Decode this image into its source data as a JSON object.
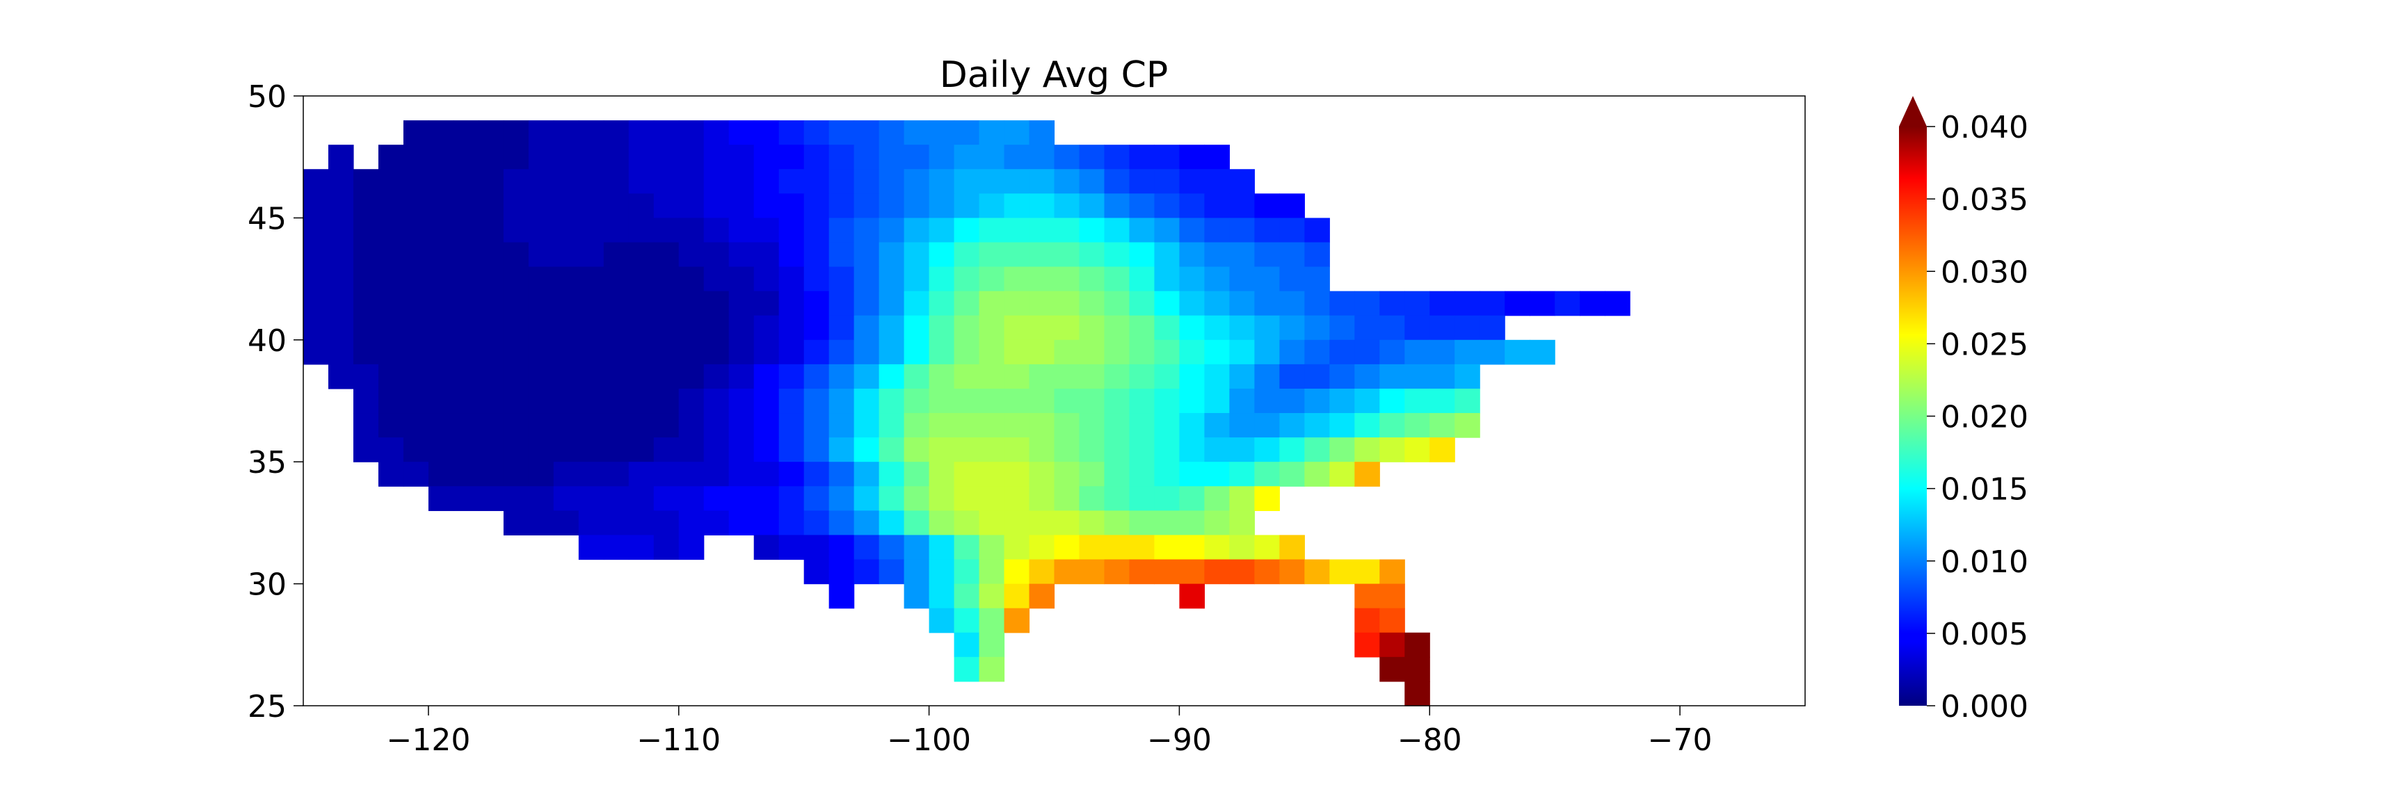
{
  "chart_data": {
    "type": "heatmap",
    "title": "Daily Avg CP",
    "xlabel": "",
    "ylabel": "",
    "xlim": [
      -125,
      -65
    ],
    "ylim": [
      25,
      50
    ],
    "grid": false,
    "x_ticks": [
      -120,
      -110,
      -100,
      -90,
      -80,
      -70
    ],
    "x_tick_labels": [
      "−120",
      "−110",
      "−100",
      "−90",
      "−80",
      "−70"
    ],
    "y_ticks": [
      25,
      30,
      35,
      40,
      45,
      50
    ],
    "y_tick_labels": [
      "25",
      "30",
      "35",
      "40",
      "45",
      "50"
    ],
    "colormap": "jet",
    "colorbar": {
      "min": 0.0,
      "max": 0.04,
      "extend": "max",
      "extend_color": "#800000",
      "ticks": [
        0.0,
        0.005,
        0.01,
        0.015,
        0.02,
        0.025,
        0.03,
        0.035,
        0.04
      ],
      "tick_labels": [
        "0.000",
        "0.005",
        "0.010",
        "0.015",
        "0.020",
        "0.025",
        "0.030",
        "0.035",
        "0.040"
      ],
      "placement": "right"
    },
    "cell_size_deg": 1.0,
    "rows": [
      {
        "lat": 48.5,
        "lon_start": -120.5,
        "values": [
          0.001,
          0.001,
          0.001,
          0.001,
          0.001,
          0.002,
          0.002,
          0.002,
          0.002,
          0.003,
          0.003,
          0.003,
          0.004,
          0.005,
          0.005,
          0.006,
          0.007,
          0.008,
          0.008,
          0.009,
          0.01,
          0.01,
          0.01,
          0.011,
          0.011,
          0.01
        ]
      },
      {
        "lat": 47.5,
        "lon_start": -123.5,
        "values": [
          0.002,
          null,
          0.001,
          0.001,
          0.001,
          0.001,
          0.001,
          0.001,
          0.002,
          0.002,
          0.002,
          0.002,
          0.003,
          0.003,
          0.003,
          0.004,
          0.004,
          0.005,
          0.005,
          0.006,
          0.007,
          0.008,
          0.009,
          0.009,
          0.01,
          0.011,
          0.011,
          0.01,
          0.01,
          0.009,
          0.008,
          0.007,
          0.006,
          0.006,
          0.005,
          0.005
        ]
      },
      {
        "lat": 46.5,
        "lon_start": -124.5,
        "values": [
          0.002,
          0.002,
          0.001,
          0.001,
          0.001,
          0.001,
          0.001,
          0.001,
          0.002,
          0.002,
          0.002,
          0.002,
          0.002,
          0.003,
          0.003,
          0.003,
          0.004,
          0.004,
          0.005,
          0.006,
          0.006,
          0.007,
          0.008,
          0.009,
          0.01,
          0.011,
          0.012,
          0.012,
          0.012,
          0.012,
          0.011,
          0.01,
          0.008,
          0.007,
          0.007,
          0.006,
          0.006,
          0.006
        ]
      },
      {
        "lat": 45.5,
        "lon_start": -124.5,
        "values": [
          0.002,
          0.002,
          0.001,
          0.001,
          0.001,
          0.001,
          0.001,
          0.001,
          0.002,
          0.002,
          0.002,
          0.002,
          0.002,
          0.002,
          0.003,
          0.003,
          0.004,
          0.004,
          0.005,
          0.005,
          0.006,
          0.007,
          0.008,
          0.009,
          0.01,
          0.011,
          0.012,
          0.013,
          0.014,
          0.014,
          0.013,
          0.012,
          0.01,
          0.009,
          0.008,
          0.007,
          0.006,
          0.006,
          0.005,
          0.005
        ]
      },
      {
        "lat": 44.5,
        "lon_start": -124.5,
        "values": [
          0.002,
          0.002,
          0.001,
          0.001,
          0.001,
          0.001,
          0.001,
          0.001,
          0.002,
          0.002,
          0.002,
          0.002,
          0.002,
          0.002,
          0.002,
          0.002,
          0.003,
          0.004,
          0.004,
          0.005,
          0.006,
          0.008,
          0.009,
          0.01,
          0.012,
          0.013,
          0.015,
          0.016,
          0.016,
          0.016,
          0.016,
          0.015,
          0.014,
          0.012,
          0.011,
          0.009,
          0.008,
          0.008,
          0.007,
          0.007,
          0.006
        ]
      },
      {
        "lat": 43.5,
        "lon_start": -124.5,
        "values": [
          0.002,
          0.002,
          0.001,
          0.001,
          0.001,
          0.001,
          0.001,
          0.001,
          0.001,
          0.002,
          0.002,
          0.002,
          0.001,
          0.001,
          0.001,
          0.002,
          0.002,
          0.003,
          0.003,
          0.005,
          0.006,
          0.008,
          0.009,
          0.011,
          0.013,
          0.015,
          0.017,
          0.018,
          0.018,
          0.018,
          0.018,
          0.017,
          0.016,
          0.015,
          0.013,
          0.011,
          0.01,
          0.01,
          0.009,
          0.009,
          0.008
        ]
      },
      {
        "lat": 42.5,
        "lon_start": -124.5,
        "values": [
          0.002,
          0.002,
          0.001,
          0.001,
          0.001,
          0.001,
          0.001,
          0.001,
          0.001,
          0.001,
          0.001,
          0.001,
          0.001,
          0.001,
          0.001,
          0.001,
          0.002,
          0.002,
          0.003,
          0.004,
          0.006,
          0.007,
          0.009,
          0.011,
          0.013,
          0.016,
          0.018,
          0.019,
          0.02,
          0.02,
          0.02,
          0.019,
          0.018,
          0.016,
          0.013,
          0.012,
          0.011,
          0.01,
          0.01,
          0.009,
          0.009
        ]
      },
      {
        "lat": 41.5,
        "lon_start": -124.5,
        "values": [
          0.002,
          0.002,
          0.001,
          0.001,
          0.001,
          0.001,
          0.001,
          0.001,
          0.001,
          0.001,
          0.001,
          0.001,
          0.001,
          0.001,
          0.001,
          0.001,
          0.001,
          0.002,
          0.002,
          0.004,
          0.005,
          0.007,
          0.009,
          0.011,
          0.014,
          0.017,
          0.019,
          0.021,
          0.021,
          0.021,
          0.021,
          0.02,
          0.019,
          0.017,
          0.015,
          0.013,
          0.012,
          0.011,
          0.01,
          0.01,
          0.009,
          0.008,
          0.008,
          0.007,
          0.007,
          0.006,
          0.006,
          0.006,
          0.005,
          0.005,
          0.006,
          0.005,
          0.005
        ]
      },
      {
        "lat": 40.5,
        "lon_start": -124.5,
        "values": [
          0.002,
          0.002,
          0.001,
          0.001,
          0.001,
          0.001,
          0.001,
          0.001,
          0.001,
          0.001,
          0.001,
          0.001,
          0.001,
          0.001,
          0.001,
          0.001,
          0.001,
          0.002,
          0.003,
          0.004,
          0.005,
          0.007,
          0.01,
          0.012,
          0.015,
          0.018,
          0.02,
          0.021,
          0.022,
          0.022,
          0.022,
          0.021,
          0.02,
          0.019,
          0.017,
          0.015,
          0.014,
          0.013,
          0.012,
          0.011,
          0.01,
          0.009,
          0.008,
          0.008,
          0.007,
          0.007,
          0.007,
          0.007
        ]
      },
      {
        "lat": 39.5,
        "lon_start": -124.5,
        "values": [
          0.002,
          0.002,
          0.001,
          0.001,
          0.001,
          0.001,
          0.001,
          0.001,
          0.001,
          0.001,
          0.001,
          0.001,
          0.001,
          0.001,
          0.001,
          0.001,
          0.001,
          0.002,
          0.003,
          0.004,
          0.006,
          0.008,
          0.01,
          0.012,
          0.015,
          0.018,
          0.02,
          0.021,
          0.022,
          0.022,
          0.021,
          0.021,
          0.02,
          0.019,
          0.018,
          0.016,
          0.015,
          0.014,
          0.012,
          0.01,
          0.009,
          0.008,
          0.008,
          0.009,
          0.01,
          0.01,
          0.011,
          0.011,
          0.012,
          0.012
        ]
      },
      {
        "lat": 38.5,
        "lon_start": -123.5,
        "values": [
          0.002,
          0.002,
          0.001,
          0.001,
          0.001,
          0.001,
          0.001,
          0.001,
          0.001,
          0.001,
          0.001,
          0.001,
          0.001,
          0.001,
          0.001,
          0.002,
          0.003,
          0.005,
          0.006,
          0.008,
          0.01,
          0.012,
          0.015,
          0.018,
          0.02,
          0.021,
          0.021,
          0.021,
          0.02,
          0.02,
          0.02,
          0.019,
          0.018,
          0.017,
          0.015,
          0.014,
          0.012,
          0.01,
          0.008,
          0.008,
          0.009,
          0.01,
          0.011,
          0.011,
          0.011,
          0.012
        ]
      },
      {
        "lat": 37.5,
        "lon_start": -122.5,
        "values": [
          0.002,
          0.001,
          0.001,
          0.001,
          0.001,
          0.001,
          0.001,
          0.001,
          0.001,
          0.001,
          0.001,
          0.001,
          0.001,
          0.002,
          0.003,
          0.004,
          0.005,
          0.007,
          0.009,
          0.011,
          0.014,
          0.017,
          0.019,
          0.02,
          0.02,
          0.02,
          0.02,
          0.02,
          0.019,
          0.019,
          0.018,
          0.017,
          0.016,
          0.015,
          0.014,
          0.011,
          0.01,
          0.01,
          0.011,
          0.012,
          0.013,
          0.015,
          0.016,
          0.016,
          0.017
        ]
      },
      {
        "lat": 36.5,
        "lon_start": -122.5,
        "values": [
          0.002,
          0.001,
          0.001,
          0.001,
          0.001,
          0.001,
          0.001,
          0.001,
          0.001,
          0.001,
          0.001,
          0.001,
          0.001,
          0.002,
          0.003,
          0.004,
          0.005,
          0.007,
          0.009,
          0.011,
          0.014,
          0.017,
          0.02,
          0.021,
          0.021,
          0.021,
          0.021,
          0.021,
          0.02,
          0.019,
          0.018,
          0.017,
          0.016,
          0.014,
          0.012,
          0.011,
          0.011,
          0.012,
          0.013,
          0.014,
          0.016,
          0.018,
          0.019,
          0.02,
          0.021
        ]
      },
      {
        "lat": 35.5,
        "lon_start": -122.5,
        "values": [
          0.002,
          0.002,
          0.001,
          0.001,
          0.001,
          0.001,
          0.001,
          0.001,
          0.001,
          0.001,
          0.001,
          0.001,
          0.002,
          0.002,
          0.003,
          0.004,
          0.005,
          0.007,
          0.009,
          0.012,
          0.015,
          0.018,
          0.021,
          0.022,
          0.022,
          0.022,
          0.022,
          0.021,
          0.02,
          0.019,
          0.018,
          0.017,
          0.016,
          0.014,
          0.013,
          0.013,
          0.014,
          0.016,
          0.018,
          0.02,
          0.022,
          0.023,
          0.024,
          0.026
        ]
      },
      {
        "lat": 34.5,
        "lon_start": -121.5,
        "values": [
          0.002,
          0.002,
          0.001,
          0.001,
          0.001,
          0.001,
          0.001,
          0.002,
          0.002,
          0.002,
          0.003,
          0.003,
          0.003,
          0.003,
          0.004,
          0.004,
          0.005,
          0.007,
          0.009,
          0.012,
          0.016,
          0.019,
          0.022,
          0.023,
          0.023,
          0.023,
          0.022,
          0.021,
          0.02,
          0.018,
          0.017,
          0.016,
          0.015,
          0.015,
          0.016,
          0.018,
          0.019,
          0.021,
          0.023,
          0.028
        ]
      },
      {
        "lat": 33.5,
        "lon_start": -119.5,
        "values": [
          0.002,
          0.002,
          0.002,
          0.002,
          0.002,
          0.003,
          0.003,
          0.003,
          0.003,
          0.004,
          0.004,
          0.005,
          0.005,
          0.005,
          0.006,
          0.008,
          0.01,
          0.013,
          0.017,
          0.02,
          0.022,
          0.023,
          0.023,
          0.023,
          0.022,
          0.021,
          0.019,
          0.018,
          0.017,
          0.017,
          0.018,
          0.02,
          0.022,
          0.025
        ]
      },
      {
        "lat": 32.5,
        "lon_start": -116.5,
        "values": [
          0.002,
          0.002,
          0.002,
          0.003,
          0.003,
          0.003,
          0.003,
          0.004,
          0.004,
          0.005,
          0.005,
          0.006,
          0.007,
          0.009,
          0.011,
          0.014,
          0.018,
          0.021,
          0.022,
          0.023,
          0.023,
          0.023,
          0.023,
          0.022,
          0.021,
          0.02,
          0.02,
          0.02,
          0.021,
          0.022
        ]
      },
      {
        "lat": 31.5,
        "lon_start": -113.5,
        "values": [
          0.004,
          0.004,
          0.004,
          0.003,
          0.004,
          null,
          null,
          0.003,
          0.004,
          0.004,
          0.005,
          0.007,
          0.009,
          0.011,
          0.014,
          0.018,
          0.021,
          0.023,
          0.024,
          0.025,
          0.026,
          0.026,
          0.026,
          0.025,
          0.025,
          0.024,
          0.023,
          0.024,
          0.027
        ]
      },
      {
        "lat": 30.5,
        "lon_start": -104.5,
        "values": [
          0.004,
          0.005,
          0.006,
          0.008,
          0.011,
          0.014,
          0.017,
          0.021,
          0.025,
          0.027,
          0.029,
          0.029,
          0.03,
          0.031,
          0.031,
          0.031,
          0.032,
          0.032,
          0.031,
          0.03,
          0.028,
          0.026,
          0.026,
          0.029
        ]
      },
      {
        "lat": 29.5,
        "lon_start": -103.5,
        "values": [
          0.005,
          null,
          null,
          0.011,
          0.014,
          0.018,
          0.022,
          0.026,
          0.03,
          null,
          null,
          null,
          null,
          null,
          0.036,
          null,
          null,
          null,
          null,
          null,
          null,
          0.031,
          0.031
        ]
      },
      {
        "lat": 28.5,
        "lon_start": -99.5,
        "values": [
          0.013,
          0.016,
          0.02,
          0.029,
          null,
          null,
          null,
          null,
          null,
          null,
          null,
          null,
          null,
          null,
          null,
          null,
          null,
          0.033,
          0.032
        ]
      },
      {
        "lat": 27.5,
        "lon_start": -98.5,
        "values": [
          0.014,
          0.02,
          null,
          null,
          null,
          null,
          null,
          null,
          null,
          null,
          null,
          null,
          null,
          null,
          null,
          null,
          0.034,
          0.038,
          0.045
        ]
      },
      {
        "lat": 26.5,
        "lon_start": -98.5,
        "values": [
          0.016,
          0.021,
          null,
          null,
          null,
          null,
          null,
          null,
          null,
          null,
          null,
          null,
          null,
          null,
          null,
          null,
          null,
          0.042,
          0.045
        ]
      },
      {
        "lat": 25.5,
        "lon_start": -80.5,
        "values": [
          0.045
        ]
      }
    ]
  }
}
